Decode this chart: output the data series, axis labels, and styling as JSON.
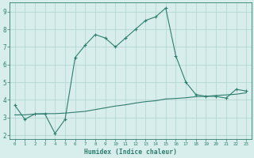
{
  "xlabel": "Humidex (Indice chaleur)",
  "x_values": [
    0,
    1,
    2,
    3,
    4,
    5,
    6,
    7,
    8,
    9,
    10,
    11,
    12,
    13,
    14,
    15,
    16,
    17,
    18,
    19,
    20,
    21,
    22,
    23
  ],
  "y_line1": [
    3.7,
    2.9,
    3.2,
    3.2,
    2.1,
    2.9,
    6.4,
    7.1,
    7.7,
    7.5,
    7.0,
    7.5,
    8.0,
    8.5,
    8.7,
    9.2,
    6.5,
    5.0,
    4.3,
    4.2,
    4.2,
    4.1,
    4.6,
    4.5
  ],
  "y_line2": [
    3.15,
    3.15,
    3.2,
    3.22,
    3.22,
    3.25,
    3.3,
    3.35,
    3.45,
    3.55,
    3.65,
    3.72,
    3.82,
    3.9,
    3.95,
    4.05,
    4.08,
    4.12,
    4.18,
    4.2,
    4.25,
    4.28,
    4.32,
    4.4
  ],
  "line_color": "#2e7d6e",
  "bg_color": "#d8eeec",
  "grid_color": "#b0d4d0",
  "ylim_min": 1.8,
  "ylim_max": 9.5,
  "xlim_min": -0.5,
  "xlim_max": 23.5,
  "yticks": [
    2,
    3,
    4,
    5,
    6,
    7,
    8,
    9
  ]
}
